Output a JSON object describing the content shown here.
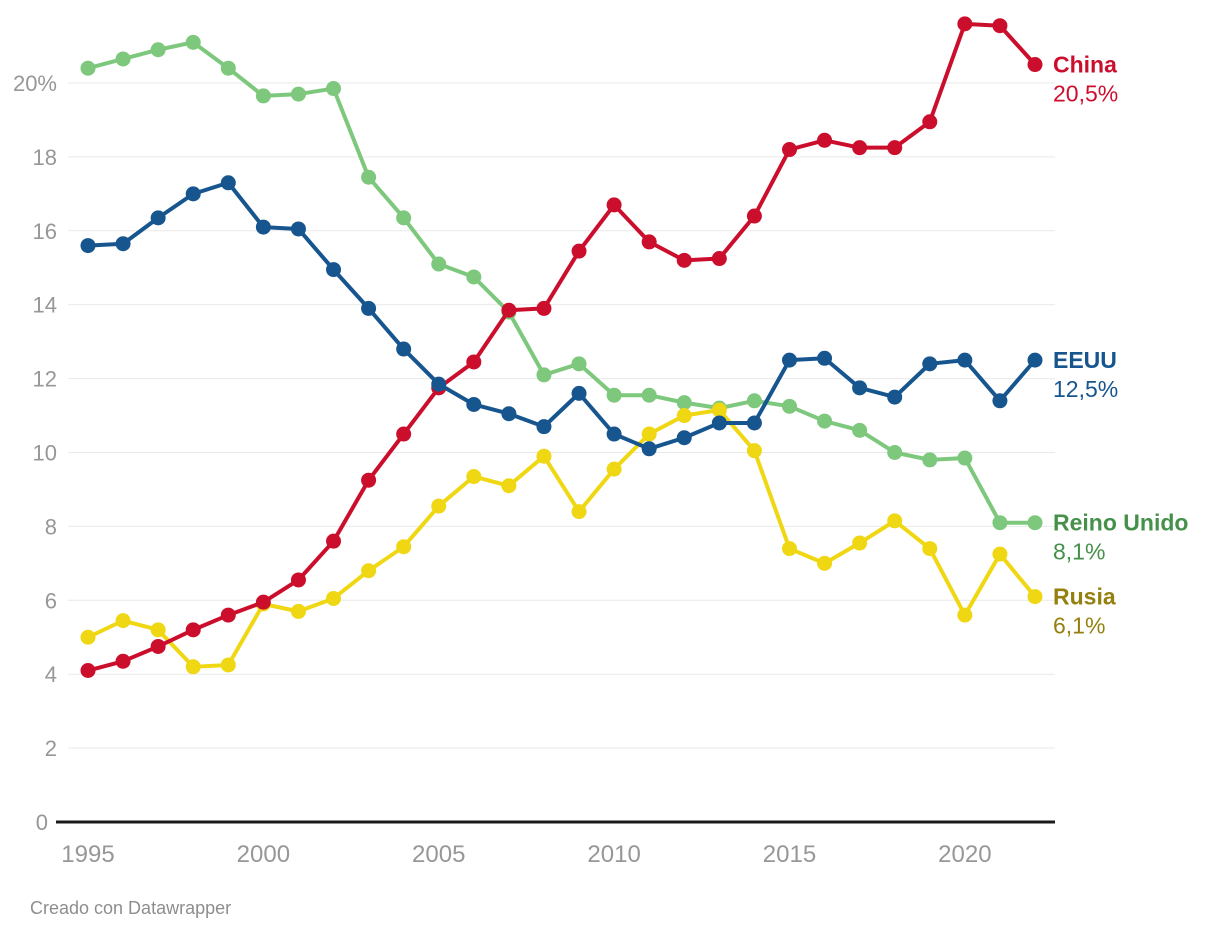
{
  "chart_data": {
    "type": "line",
    "title": "",
    "xlabel": "",
    "ylabel": "",
    "x": [
      1995,
      1996,
      1997,
      1998,
      1999,
      2000,
      2001,
      2002,
      2003,
      2004,
      2005,
      2006,
      2007,
      2008,
      2009,
      2010,
      2011,
      2012,
      2013,
      2014,
      2015,
      2016,
      2017,
      2018,
      2019,
      2020,
      2021,
      2022
    ],
    "x_ticks": [
      1995,
      2000,
      2005,
      2010,
      2015,
      2020
    ],
    "y_ticks": [
      0,
      2,
      4,
      6,
      8,
      10,
      12,
      14,
      16,
      18,
      20
    ],
    "y_top_tick_label": "20%",
    "ylim": [
      0,
      21.9
    ],
    "grid": "horizontal",
    "legend_position": "end-of-line-labels",
    "series": [
      {
        "name": "China",
        "end_label": "China",
        "end_value_label": "20,5%",
        "color": "#cc0e2d",
        "label_color": "#cc0e2d",
        "values": [
          4.1,
          4.35,
          4.75,
          5.2,
          5.6,
          5.95,
          6.55,
          7.6,
          9.25,
          10.5,
          11.75,
          12.45,
          13.85,
          13.9,
          15.45,
          16.7,
          15.7,
          15.2,
          15.25,
          16.4,
          18.2,
          18.45,
          18.25,
          18.25,
          18.95,
          21.6,
          21.55,
          20.5
        ]
      },
      {
        "name": "EEUU",
        "end_label": "EEUU",
        "end_value_label": "12,5%",
        "color": "#17558f",
        "label_color": "#17558f",
        "values": [
          15.6,
          15.65,
          16.35,
          17.0,
          17.3,
          16.1,
          16.05,
          14.95,
          13.9,
          12.8,
          11.85,
          11.3,
          11.05,
          10.7,
          11.6,
          10.5,
          10.1,
          10.4,
          10.8,
          10.8,
          12.5,
          12.55,
          11.75,
          11.5,
          12.4,
          12.5,
          11.4,
          12.5
        ]
      },
      {
        "name": "Reino Unido",
        "end_label": "Reino Unido",
        "end_value_label": "8,1%",
        "color": "#7dc87d",
        "label_color": "#45904a",
        "values": [
          20.4,
          20.65,
          20.9,
          21.1,
          20.4,
          19.65,
          19.7,
          19.85,
          17.45,
          16.35,
          15.1,
          14.75,
          13.8,
          12.1,
          12.4,
          11.55,
          11.55,
          11.35,
          11.2,
          11.4,
          11.25,
          10.85,
          10.6,
          10.0,
          9.8,
          9.85,
          8.1,
          8.1
        ]
      },
      {
        "name": "Rusia",
        "end_label": "Rusia",
        "end_value_label": "6,1%",
        "color": "#f0d713",
        "label_color": "#95800e",
        "values": [
          5.0,
          5.45,
          5.2,
          4.2,
          4.25,
          5.9,
          5.7,
          6.05,
          6.8,
          7.45,
          8.55,
          9.35,
          9.1,
          9.9,
          8.4,
          9.55,
          10.5,
          11.0,
          11.15,
          10.05,
          7.4,
          7.0,
          7.55,
          8.15,
          7.4,
          5.6,
          7.25,
          6.1
        ]
      }
    ],
    "draw_order": [
      "Reino Unido",
      "Rusia",
      "China",
      "EEUU"
    ]
  },
  "axis_colors": {
    "gridline": "#e9e9e9",
    "zero_line": "#1a1a1a",
    "tick_text": "#979797"
  },
  "footer": {
    "credit": "Creado con Datawrapper"
  }
}
